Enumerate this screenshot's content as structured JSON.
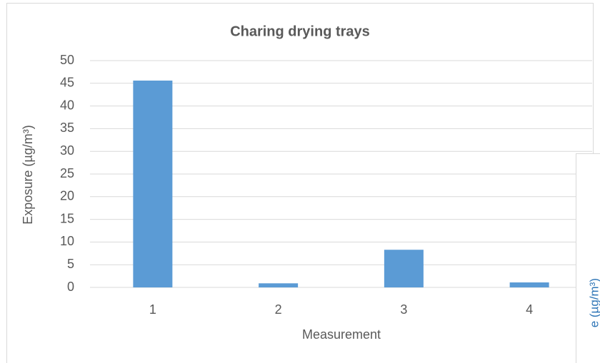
{
  "chart_data": {
    "type": "bar",
    "title": "Charing drying trays",
    "x_label": "Measurement",
    "y_label": "Exposure (µg/m³)",
    "categories": [
      "1",
      "2",
      "3",
      "4"
    ],
    "values": [
      45.6,
      0.9,
      8.3,
      1.1
    ],
    "color": "#5b9bd5",
    "ylim": [
      0,
      50
    ],
    "yticks": [
      0,
      5,
      10,
      15,
      20,
      25,
      30,
      35,
      40,
      45,
      50
    ],
    "grid": true
  },
  "overlay_chart": {
    "y_label": "e (µg/m³)"
  }
}
